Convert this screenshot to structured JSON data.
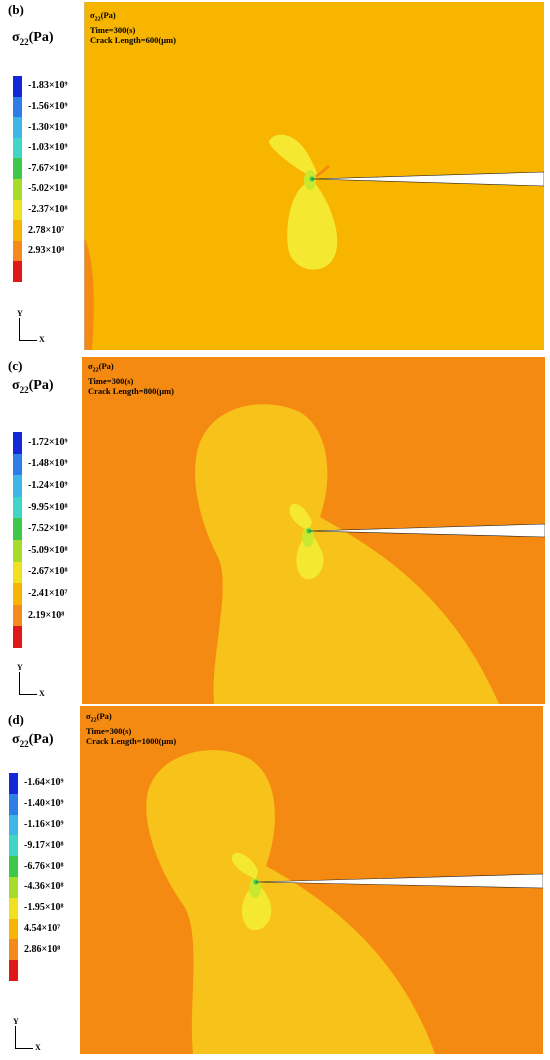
{
  "panels": [
    {
      "label": "(b)",
      "quantity": "σ22(Pa)",
      "quantity_main": "σ",
      "quantity_sub": "22",
      "quantity_unit": "(Pa)",
      "header_quantity_main": "σ",
      "header_quantity_sub": "22",
      "header_quantity_unit": "(Pa)",
      "time": "Time=300(s)",
      "crack": "Crack Length=600(μm)",
      "legend": [
        "-1.83×10⁹",
        "-1.56×10⁹",
        "-1.30×10⁹",
        "-1.03×10⁹",
        "-7.67×10⁸",
        "-5.02×10⁸",
        "-2.37×10⁸",
        "2.78×10⁷",
        "2.93×10⁸"
      ],
      "legend_colors": [
        "#1428d8",
        "#2f7ee6",
        "#3fb6e8",
        "#3fd6c8",
        "#3cc84a",
        "#a6dc2a",
        "#f0e020",
        "#f7b400",
        "#f58a1c",
        "#e01818"
      ],
      "axis_y": "Y",
      "axis_x": "X"
    },
    {
      "label": "(c)",
      "quantity": "σ22(Pa)",
      "quantity_main": "σ",
      "quantity_sub": "22",
      "quantity_unit": "(Pa)",
      "header_quantity_main": "σ",
      "header_quantity_sub": "22",
      "header_quantity_unit": "(Pa)",
      "time": "Time=300(s)",
      "crack": "Crack Length=800(μm)",
      "legend": [
        "-1.72×10⁹",
        "-1.48×10⁹",
        "-1.24×10⁹",
        "-9.95×10⁸",
        "-7.52×10⁸",
        "-5.09×10⁸",
        "-2.67×10⁸",
        "-2.41×10⁷",
        "2.19×10⁸"
      ],
      "legend_colors": [
        "#1428d8",
        "#2f7ee6",
        "#3fb6e8",
        "#3fd6c8",
        "#3cc84a",
        "#a6dc2a",
        "#f0e020",
        "#f7b400",
        "#f58a1c",
        "#e01818"
      ],
      "axis_y": "Y",
      "axis_x": "X"
    },
    {
      "label": "(d)",
      "quantity": "σ22(Pa)",
      "quantity_main": "σ",
      "quantity_sub": "22",
      "quantity_unit": "(Pa)",
      "header_quantity_main": "σ",
      "header_quantity_sub": "22",
      "header_quantity_unit": "(Pa)",
      "time": "Time=300(s)",
      "crack": "Crack Length=1000(μm)",
      "legend": [
        "-1.64×10⁹",
        "-1.40×10⁹",
        "-1.16×10⁹",
        "-9.17×10⁸",
        "-6.76×10⁸",
        "-4.36×10⁸",
        "-1.95×10⁸",
        "4.54×10⁷",
        "2.86×10⁸"
      ],
      "legend_colors": [
        "#1428d8",
        "#2f7ee6",
        "#3fb6e8",
        "#3fd6c8",
        "#3cc84a",
        "#a6dc2a",
        "#f0e020",
        "#f7b400",
        "#f58a1c",
        "#e01818"
      ],
      "axis_y": "Y",
      "axis_x": "X"
    }
  ],
  "colors": {
    "field_b": "#f7b500",
    "field_cd": "#f58a12",
    "lobe": "#f7c21a",
    "lobe_inner": "#f5e830",
    "tip_green": "#8fd83a",
    "crack": "#ffffff"
  }
}
